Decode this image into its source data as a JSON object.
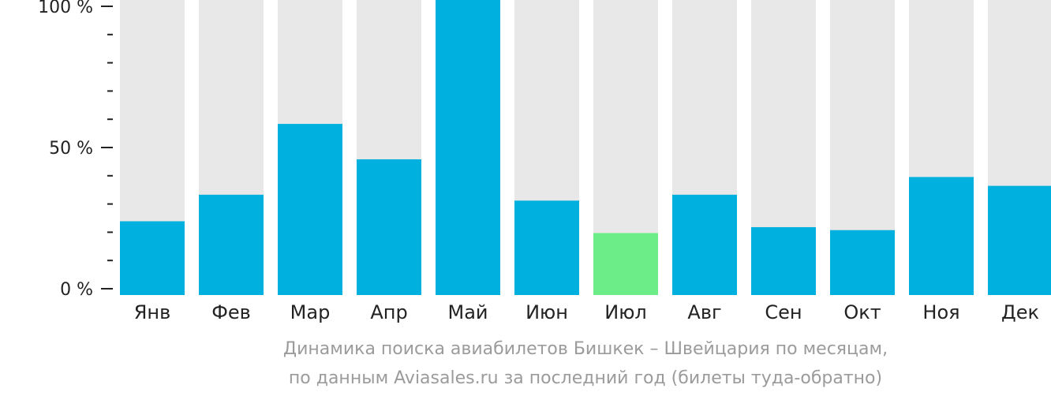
{
  "colors": {
    "bar": "#00b0de",
    "bar_highlight": "#6ced87",
    "bar_background": "#e8e8e8",
    "axis": "#222222",
    "caption": "#9b9b9b"
  },
  "chart_data": {
    "type": "bar",
    "categories": [
      "Янв",
      "Фев",
      "Мар",
      "Апр",
      "Май",
      "Июн",
      "Июл",
      "Авг",
      "Сен",
      "Окт",
      "Ноя",
      "Дек"
    ],
    "values": [
      25,
      34,
      58,
      46,
      100,
      32,
      21,
      34,
      23,
      22,
      40,
      37
    ],
    "highlight_index": 6,
    "ylim": [
      0,
      100
    ],
    "yticks": [
      {
        "value": 0,
        "label": "0 %"
      },
      {
        "value": 50,
        "label": "50 %"
      },
      {
        "value": 100,
        "label": "100 %"
      }
    ],
    "minor_tick_step": 10,
    "xlabel": "",
    "ylabel": "",
    "grid": false,
    "legend": "none"
  },
  "caption": {
    "line1": "Динамика поиска авиабилетов Бишкек – Швейцария по месяцам,",
    "line2": "по данным Aviasales.ru за последний год (билеты туда-обратно)"
  }
}
